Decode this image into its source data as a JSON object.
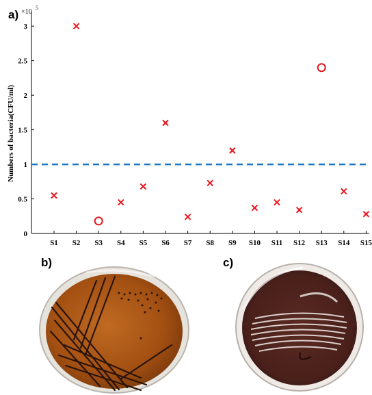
{
  "figure": {
    "panel_a_label": "a)",
    "panel_b_label": "b)",
    "panel_c_label": "c)"
  },
  "chart_data": {
    "type": "scatter",
    "categories": [
      "S1",
      "S2",
      "S3",
      "S4",
      "S5",
      "S6",
      "S7",
      "S8",
      "S9",
      "S10",
      "S11",
      "S12",
      "S13",
      "S14",
      "S15"
    ],
    "values": [
      55000,
      300000,
      18000,
      45000,
      68000,
      160000,
      24000,
      73000,
      120000,
      37000,
      45000,
      34000,
      240000,
      61000,
      28000
    ],
    "markers": [
      "x",
      "x",
      "o",
      "x",
      "x",
      "x",
      "x",
      "x",
      "x",
      "x",
      "x",
      "x",
      "o",
      "x",
      "x"
    ],
    "marker_color": "#e8141c",
    "threshold": {
      "value": 100000,
      "color": "#1f77c4",
      "style": "dashed"
    },
    "ylabel": "Numbers of bacteria(CFU/ml)",
    "xlabel": "",
    "ylim": [
      0,
      320000
    ],
    "y_ticks": [
      "0",
      "0.5",
      "1",
      "1.5",
      "2",
      "2.5",
      "3"
    ],
    "y_tick_values": [
      0,
      50000,
      100000,
      150000,
      200000,
      250000,
      300000
    ],
    "y_exponent": "×10",
    "y_exponent_power": "5",
    "grid": false
  }
}
